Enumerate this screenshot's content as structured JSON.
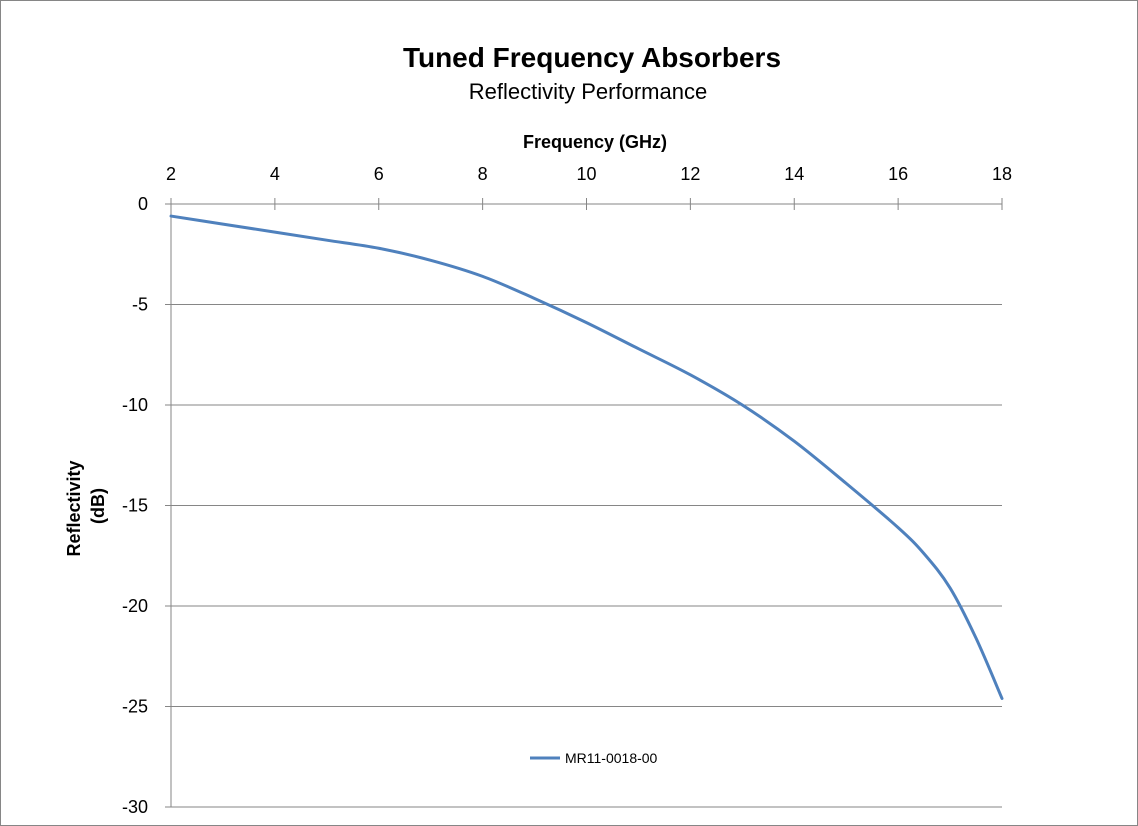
{
  "chart_data": {
    "type": "line",
    "title": "Tuned Frequency Absorbers",
    "subtitle": "Reflectivity Performance",
    "xlabel": "Frequency (GHz)",
    "ylabel_lines": [
      "Reflectivity",
      "(dB)"
    ],
    "xlim": [
      2,
      18
    ],
    "ylim": [
      -30,
      0
    ],
    "x_ticks": [
      2,
      4,
      6,
      8,
      10,
      12,
      14,
      16,
      18
    ],
    "y_ticks": [
      0,
      -5,
      -10,
      -15,
      -20,
      -25,
      -30
    ],
    "x_axis_position": "top",
    "grid": "horizontal",
    "legend_position": "bottom",
    "series": [
      {
        "name": "MR11-0018-00",
        "color": "#4F81BD",
        "x": [
          2,
          3,
          4,
          5,
          6,
          7,
          8,
          9,
          10,
          11,
          12,
          13,
          14,
          15,
          16,
          16.5,
          17,
          17.5,
          18
        ],
        "y": [
          -0.6,
          -1.0,
          -1.4,
          -1.8,
          -2.2,
          -2.8,
          -3.6,
          -4.7,
          -5.9,
          -7.2,
          -8.5,
          -10.0,
          -11.8,
          -13.9,
          -16.1,
          -17.4,
          -19.1,
          -21.6,
          -24.6
        ]
      }
    ]
  }
}
